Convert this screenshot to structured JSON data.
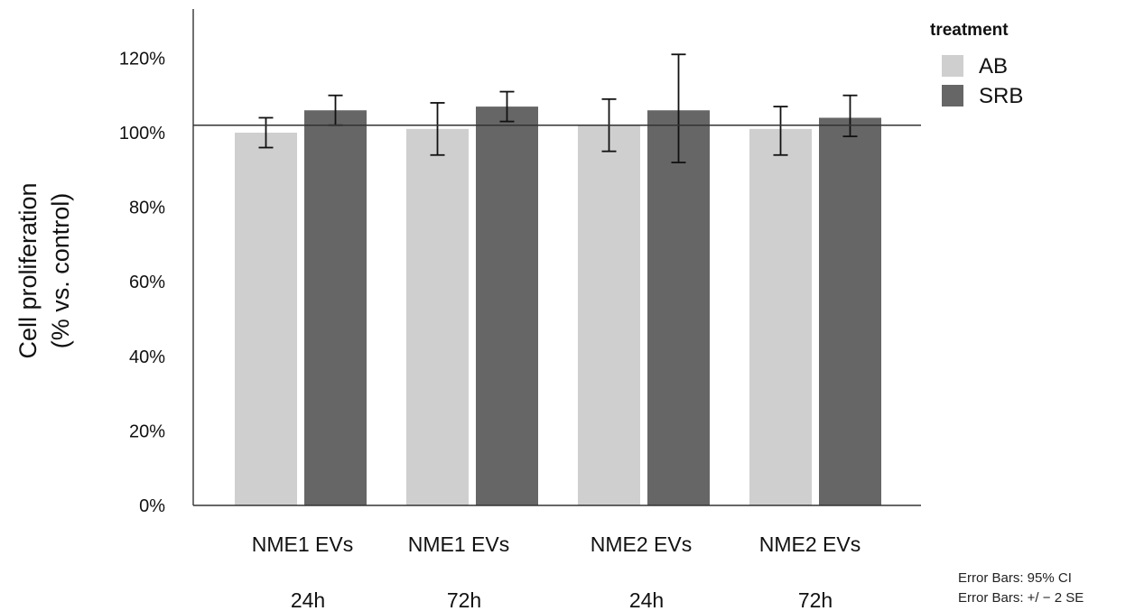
{
  "chart_data": {
    "type": "bar",
    "ylabel_lines": [
      "Cell proliferation",
      "(% vs. control)"
    ],
    "y_ticks": [
      0,
      20,
      40,
      60,
      80,
      100,
      120
    ],
    "y_tick_labels": [
      "0%",
      "20%",
      "40%",
      "60%",
      "80%",
      "100%",
      "120%"
    ],
    "ylim": [
      0,
      133
    ],
    "reference_line": 102,
    "groups": [
      {
        "label": "NME1 EVs",
        "time": "24h"
      },
      {
        "label": "NME1 EVs",
        "time": "72h"
      },
      {
        "label": "NME2 EVs",
        "time": "24h"
      },
      {
        "label": "NME2 EVs",
        "time": "72h"
      }
    ],
    "series": [
      {
        "name": "AB",
        "color": "#cfcfcf",
        "values": [
          100,
          101,
          102,
          101
        ],
        "err_low": [
          96,
          94,
          95,
          94
        ],
        "err_high": [
          104,
          108,
          109,
          107
        ]
      },
      {
        "name": "SRB",
        "color": "#666666",
        "values": [
          106,
          107,
          106,
          104
        ],
        "err_low": [
          102,
          103,
          92,
          99
        ],
        "err_high": [
          110,
          111,
          121,
          110
        ]
      }
    ],
    "legend": {
      "title": "treatment",
      "position": "top-right"
    },
    "notes": [
      "Error Bars: 95% CI",
      "Error Bars: +/ − 2 SE"
    ],
    "grid": false
  }
}
